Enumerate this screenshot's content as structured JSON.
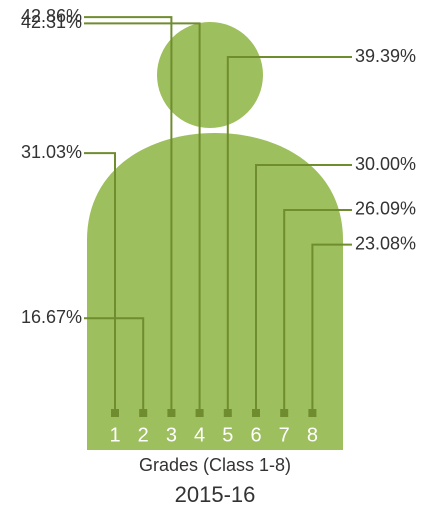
{
  "chart_data": {
    "type": "pictograph",
    "title": "2015-16",
    "x_label": "Grades (Class 1-8)",
    "categories": [
      "1",
      "2",
      "3",
      "4",
      "5",
      "6",
      "7",
      "8"
    ],
    "values": [
      31.03,
      16.67,
      42.86,
      42.31,
      39.39,
      30.0,
      26.09,
      23.08
    ],
    "value_labels": [
      "31.03%",
      "16.67%",
      "42.86%",
      "42.31%",
      "39.39%",
      "30.00%",
      "26.09%",
      "23.08%"
    ],
    "color": "#9dbf5d",
    "line_color": "#6f8c2f"
  }
}
